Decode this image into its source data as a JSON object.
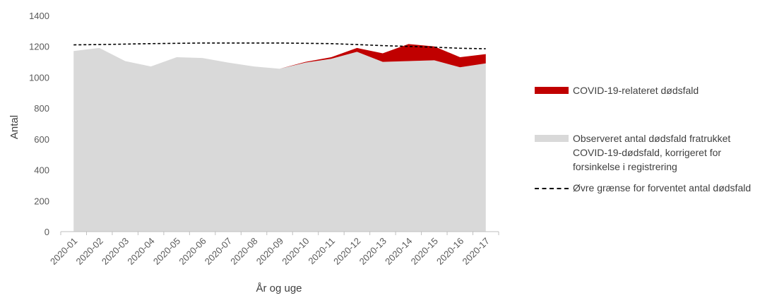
{
  "chart_data": {
    "type": "area",
    "title": "",
    "xlabel": "År og uge",
    "ylabel": "Antal",
    "ylim": [
      0,
      1400
    ],
    "yticks": [
      0,
      200,
      400,
      600,
      800,
      1000,
      1200,
      1400
    ],
    "grid": false,
    "legend_position": "right",
    "categories": [
      "2020-01",
      "2020-02",
      "2020-03",
      "2020-04",
      "2020-05",
      "2020-06",
      "2020-07",
      "2020-08",
      "2020-09",
      "2020-10",
      "2020-11",
      "2020-12",
      "2020-13",
      "2020-14",
      "2020-15",
      "2020-16",
      "2020-17"
    ],
    "series": [
      {
        "name": "Observeret antal dødsfald fratrukket COVID-19-dødsfald, korrigeret for forsinkelse i registrering",
        "kind": "stacked-area",
        "color": "#d9d9d9",
        "values": [
          1170,
          1190,
          1105,
          1070,
          1130,
          1125,
          1095,
          1070,
          1055,
          1095,
          1120,
          1165,
          1100,
          1105,
          1110,
          1065,
          1090
        ]
      },
      {
        "name": "COVID-19-relateret dødsfald",
        "kind": "stacked-area",
        "color": "#c00000",
        "values": [
          0,
          0,
          0,
          0,
          0,
          0,
          0,
          0,
          0,
          5,
          10,
          25,
          55,
          110,
          90,
          65,
          60
        ]
      },
      {
        "name": "Øvre grænse for forventet antal dødsfald",
        "kind": "dashed-line",
        "color": "#000000",
        "values": [
          1210,
          1212,
          1215,
          1218,
          1220,
          1222,
          1222,
          1222,
          1222,
          1220,
          1218,
          1212,
          1205,
          1200,
          1195,
          1188,
          1185
        ]
      }
    ]
  },
  "legend": {
    "covid": "COVID-19-relateret dødsfald",
    "observed": "Observeret antal dødsfald fratrukket COVID-19-dødsfald, korrigeret for forsinkelse i registrering",
    "upper": "Øvre grænse for forventet antal dødsfald"
  }
}
